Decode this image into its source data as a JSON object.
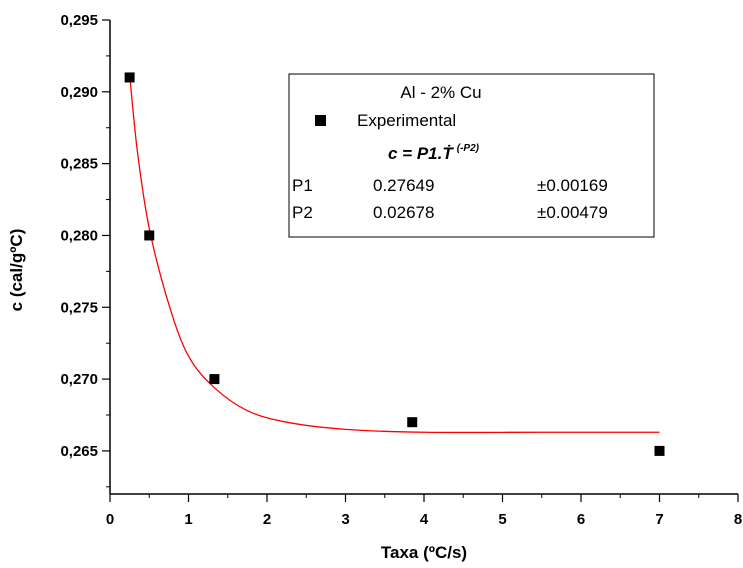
{
  "chart_data": {
    "type": "scatter",
    "xlabel": "Taxa (ºC/s)",
    "ylabel": "c (cal/gºC)",
    "xlim": [
      0,
      8
    ],
    "ylim": [
      0.262,
      0.295
    ],
    "x_ticks": [
      0,
      1,
      2,
      3,
      4,
      5,
      6,
      7,
      8
    ],
    "x_tick_labels": [
      "0",
      "1",
      "2",
      "3",
      "4",
      "5",
      "6",
      "7",
      "8"
    ],
    "y_ticks": [
      0.265,
      0.27,
      0.275,
      0.28,
      0.285,
      0.29,
      0.295
    ],
    "y_tick_labels": [
      "0,265",
      "0,270",
      "0,275",
      "0,280",
      "0,285",
      "0,290",
      "0,295"
    ],
    "series": [
      {
        "name": "Experimental",
        "marker": "square",
        "color": "#000000",
        "x": [
          0.25,
          0.5,
          1.33,
          3.85,
          7.0
        ],
        "y": [
          0.291,
          0.28,
          0.27,
          0.267,
          0.265
        ]
      }
    ],
    "fit": {
      "color": "#ff0000",
      "x_range": [
        0.25,
        7.0
      ],
      "y_start": 0.2912,
      "y_end": 0.2663,
      "curve_points": [
        [
          0.25,
          0.2912
        ],
        [
          0.35,
          0.2858
        ],
        [
          0.5,
          0.2805
        ],
        [
          0.75,
          0.2752
        ],
        [
          1.0,
          0.2716
        ],
        [
          1.33,
          0.2694
        ],
        [
          1.75,
          0.2678
        ],
        [
          2.25,
          0.267
        ],
        [
          3.0,
          0.2665
        ],
        [
          4.0,
          0.2663
        ],
        [
          5.5,
          0.2663
        ],
        [
          7.0,
          0.2663
        ]
      ]
    },
    "legend": {
      "position": "top-right",
      "title": "Al - 2% Cu",
      "series_label": "Experimental",
      "equation_main": "c = P1.Ṫ",
      "equation_sup": "(-P2)",
      "params": [
        {
          "name": "P1",
          "value": "0.27649",
          "error": "±0.00169"
        },
        {
          "name": "P2",
          "value": "0.02678",
          "error": "±0.00479"
        }
      ]
    },
    "grid": false
  }
}
